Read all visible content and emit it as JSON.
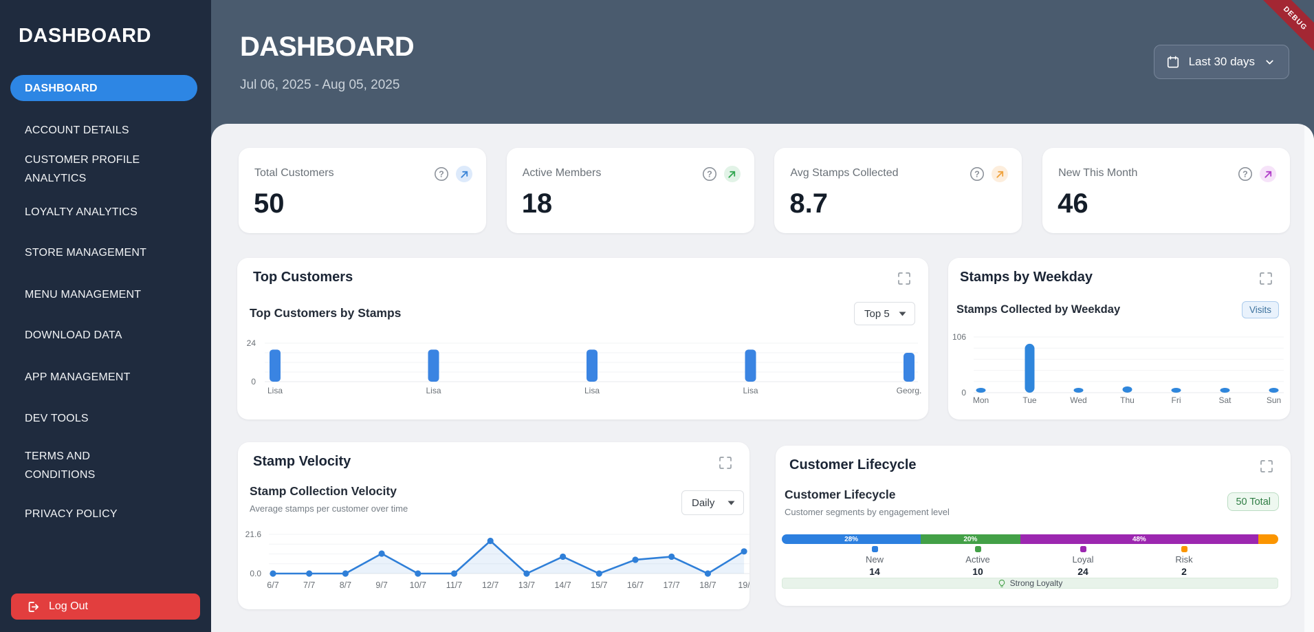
{
  "sidebar": {
    "logo": "DASHBOARD",
    "items": [
      {
        "label": "DASHBOARD",
        "active": true
      },
      {
        "label": "ACCOUNT DETAILS"
      },
      {
        "label": "CUSTOMER PROFILE ANALYTICS"
      },
      {
        "label": "LOYALTY ANALYTICS"
      },
      {
        "label": "STORE MANAGEMENT"
      },
      {
        "label": "MENU MANAGEMENT"
      },
      {
        "label": "DOWNLOAD DATA"
      },
      {
        "label": "APP MANAGEMENT"
      },
      {
        "label": "DEV TOOLS"
      },
      {
        "label": "TERMS AND CONDITIONS"
      },
      {
        "label": "PRIVACY POLICY"
      }
    ],
    "logout_label": "Log Out"
  },
  "header": {
    "title": "DASHBOARD",
    "date_range": "Jul 06, 2025 - Aug 05, 2025",
    "range_button": "Last 30 days",
    "debug_ribbon": "DEBUG"
  },
  "stats": [
    {
      "label": "Total Customers",
      "value": "50",
      "accent": "#3d86d8",
      "accent_bg": "#ddeafb"
    },
    {
      "label": "Active Members",
      "value": "18",
      "accent": "#34a853",
      "accent_bg": "#e2f3e7"
    },
    {
      "label": "Avg Stamps Collected",
      "value": "8.7",
      "accent": "#f0a33f",
      "accent_bg": "#fdeedd"
    },
    {
      "label": "New This Month",
      "value": "46",
      "accent": "#b13fc9",
      "accent_bg": "#f6e3f9"
    }
  ],
  "panels": {
    "top_customers": {
      "title": "Top Customers",
      "subtitle": "Top Customers by Stamps",
      "dropdown": "Top 5"
    },
    "weekday": {
      "title": "Stamps by Weekday",
      "subtitle": "Stamps Collected by Weekday",
      "badge": "Visits"
    },
    "velocity": {
      "title": "Stamp Velocity",
      "subtitle": "Stamp Collection Velocity",
      "caption": "Average stamps per customer over time",
      "dropdown": "Daily"
    },
    "lifecycle": {
      "title": "Customer Lifecycle",
      "subtitle": "Customer Lifecycle",
      "caption": "Customer segments by engagement level",
      "badge": "50 Total",
      "insight": "Strong Loyalty"
    }
  },
  "chart_data": [
    {
      "id": "top_customers",
      "type": "bar",
      "title": "Top Customers by Stamps",
      "categories": [
        "Lisa",
        "Lisa",
        "Lisa",
        "Lisa",
        "Georg."
      ],
      "values": [
        20,
        20,
        20,
        20,
        18
      ],
      "ylim": [
        0,
        24
      ],
      "yticks": [
        "0",
        "24"
      ],
      "grid": true,
      "bar_color": "#3a84e2"
    },
    {
      "id": "stamps_by_weekday",
      "type": "bar",
      "title": "Stamps Collected by Weekday",
      "categories": [
        "Mon",
        "Tue",
        "Wed",
        "Thu",
        "Fri",
        "Sat",
        "Sun"
      ],
      "values": [
        7,
        93,
        7,
        12,
        7,
        8,
        7
      ],
      "ylim": [
        0,
        106
      ],
      "yticks": [
        "0",
        "106"
      ],
      "grid": true,
      "bar_color": "#2f86dc"
    },
    {
      "id": "stamp_velocity",
      "type": "line",
      "title": "Stamp Collection Velocity",
      "x": [
        "6/7",
        "7/7",
        "8/7",
        "9/7",
        "10/7",
        "11/7",
        "12/7",
        "13/7",
        "14/7",
        "15/7",
        "16/7",
        "17/7",
        "18/7",
        "19/"
      ],
      "values": [
        0,
        0,
        0,
        11,
        0,
        0,
        18,
        0,
        9.3,
        0,
        7.6,
        9.3,
        0,
        12.2
      ],
      "ylim": [
        0,
        21.6
      ],
      "yticks": [
        "0.0",
        "21.6"
      ],
      "grid": true,
      "line_color": "#2f7fd8"
    },
    {
      "id": "customer_lifecycle",
      "type": "stacked_bar",
      "title": "Customer Lifecycle",
      "segments": [
        {
          "label": "New",
          "value": 14,
          "pct": "28%",
          "color": "#2c7fdf"
        },
        {
          "label": "Active",
          "value": 10,
          "pct": "20%",
          "color": "#43a047"
        },
        {
          "label": "Loyal",
          "value": 24,
          "pct": "48%",
          "color": "#9c27b0"
        },
        {
          "label": "Risk",
          "value": 2,
          "pct": "",
          "color": "#fb9500"
        }
      ],
      "total": 50,
      "total_badge": "50 Total",
      "insight": "Strong Loyalty"
    }
  ]
}
